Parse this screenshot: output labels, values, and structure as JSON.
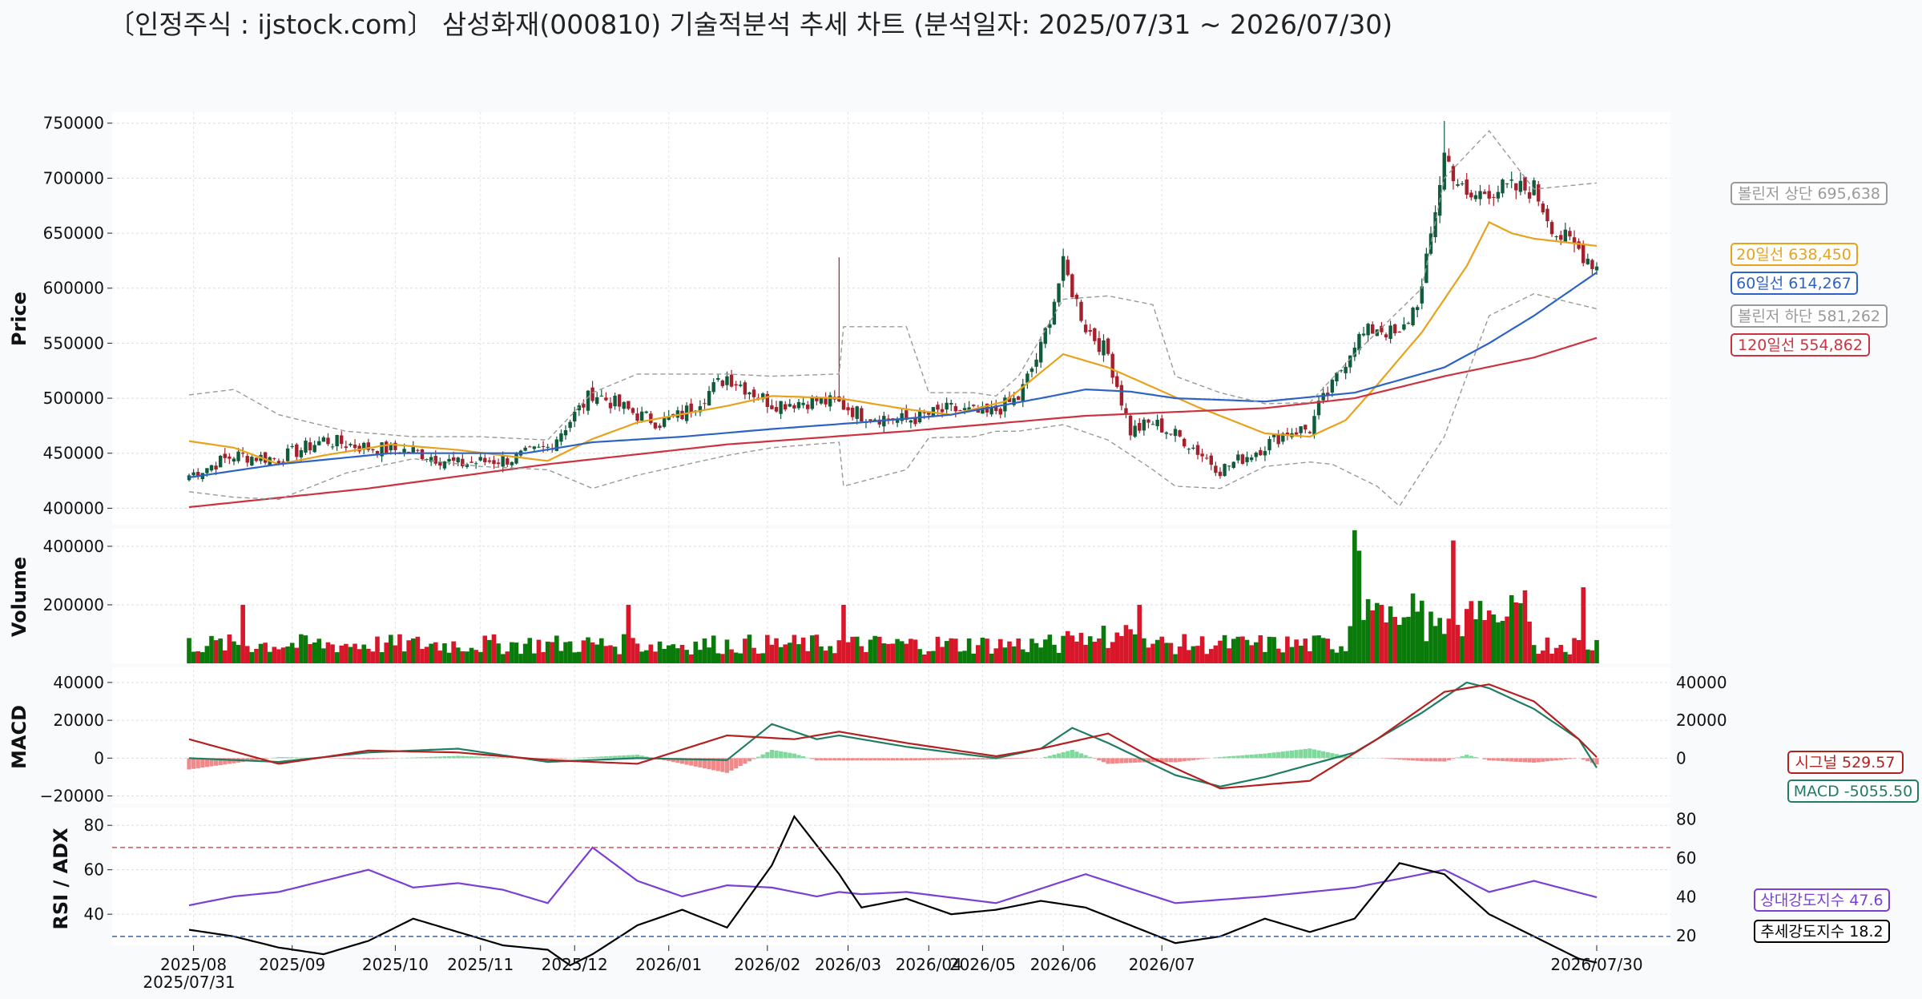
{
  "title": "〔인정주식 : ijstock.com〕 삼성화재(000810) 기술적분석 추세 차트 (분석일자: 2025/07/31 ~ 2026/07/30)",
  "chart_data": [
    {
      "type": "line",
      "panel": "price",
      "ylabel": "Price",
      "ylim": [
        385000,
        760000
      ],
      "yticks": [
        400000,
        450000,
        500000,
        550000,
        600000,
        650000,
        700000,
        750000
      ],
      "grid": true,
      "candles_x_range": [
        "2025/07/31",
        "2026/07/30"
      ],
      "close_path": {
        "x": [
          0,
          10,
          20,
          30,
          40,
          50,
          60,
          72,
          80,
          90,
          100,
          105,
          110,
          120,
          130,
          140,
          145,
          150,
          160,
          170,
          178,
          185,
          190,
          195,
          200,
          205,
          210,
          215,
          222,
          230,
          238,
          245,
          250,
          252,
          255,
          260,
          265,
          270,
          275,
          280,
          285,
          290,
          300,
          305,
          310,
          314
        ],
        "values": [
          430000,
          448000,
          445000,
          462000,
          455000,
          452000,
          440000,
          445000,
          455000,
          505000,
          485000,
          478000,
          485000,
          520000,
          495000,
          498000,
          495000,
          485000,
          480000,
          490000,
          485000,
          500000,
          545000,
          620000,
          565000,
          540000,
          470000,
          478000,
          462000,
          435000,
          452000,
          470000,
          472000,
          492000,
          510000,
          552000,
          565000,
          555000,
          598000,
          722000,
          680000,
          690000,
          690000,
          650000,
          635000,
          620000
        ]
      },
      "series": [
        {
          "name": "20일선",
          "color": "#e8a21b",
          "last": "638,450",
          "x": [
            0,
            10,
            20,
            30,
            45,
            60,
            80,
            90,
            100,
            120,
            130,
            145,
            160,
            170,
            182,
            195,
            205,
            215,
            225,
            240,
            250,
            258,
            265,
            275,
            285,
            290,
            295,
            300,
            314
          ],
          "values": [
            461000,
            455000,
            440000,
            448000,
            458000,
            453000,
            443000,
            463000,
            478000,
            493000,
            502000,
            500000,
            490000,
            485000,
            497000,
            540000,
            528000,
            510000,
            492000,
            468000,
            465000,
            480000,
            512000,
            560000,
            620000,
            660000,
            650000,
            645000,
            638450
          ]
        },
        {
          "name": "60일선",
          "color": "#2e63c6",
          "last": "614,267",
          "x": [
            0,
            20,
            45,
            75,
            90,
            110,
            130,
            150,
            170,
            190,
            200,
            210,
            220,
            240,
            260,
            280,
            290,
            300,
            314
          ],
          "values": [
            428000,
            440000,
            450000,
            450000,
            460000,
            465000,
            472000,
            478000,
            485000,
            500000,
            508000,
            506000,
            500000,
            497000,
            505000,
            528000,
            550000,
            575000,
            614267
          ]
        },
        {
          "name": "120일선",
          "color": "#cc3340",
          "last": "554,862",
          "x": [
            0,
            40,
            80,
            120,
            160,
            200,
            240,
            260,
            280,
            300,
            314
          ],
          "values": [
            401000,
            418000,
            440000,
            458000,
            470000,
            484000,
            491000,
            500000,
            520000,
            537000,
            554862
          ]
        },
        {
          "name": "볼린저 상단",
          "color": "#999999",
          "last": "695,638",
          "x": [
            0,
            10,
            20,
            35,
            50,
            65,
            80,
            90,
            100,
            120,
            130,
            145,
            146,
            160,
            165,
            175,
            180,
            185,
            195,
            205,
            215,
            220,
            230,
            240,
            250,
            260,
            275,
            280,
            290,
            300,
            314
          ],
          "values": [
            503000,
            508000,
            485000,
            470000,
            465000,
            465000,
            462000,
            505000,
            522000,
            522000,
            520000,
            522000,
            565000,
            565000,
            505000,
            505000,
            502000,
            520000,
            590000,
            593000,
            585000,
            520000,
            505000,
            495000,
            496000,
            540000,
            600000,
            700000,
            743000,
            690000,
            695638
          ]
        },
        {
          "name": "볼린저 하단",
          "color": "#999999",
          "last": "581,262",
          "x": [
            0,
            10,
            20,
            35,
            50,
            65,
            80,
            90,
            100,
            120,
            130,
            145,
            146,
            160,
            165,
            175,
            180,
            185,
            195,
            205,
            215,
            220,
            230,
            240,
            250,
            255,
            265,
            270,
            280,
            290,
            300,
            314
          ],
          "values": [
            415000,
            410000,
            408000,
            432000,
            445000,
            438000,
            435000,
            418000,
            430000,
            448000,
            455000,
            460000,
            420000,
            435000,
            464000,
            465000,
            470000,
            470000,
            476000,
            462000,
            435000,
            420000,
            418000,
            438000,
            442000,
            440000,
            420000,
            402000,
            465000,
            575000,
            595000,
            581262
          ]
        }
      ]
    },
    {
      "type": "bar",
      "panel": "volume",
      "ylabel": "Volume",
      "ylim": [
        0,
        460000
      ],
      "yticks": [
        200000,
        400000
      ],
      "colors": {
        "up": "#0a7a0a",
        "down": "#d8182a"
      }
    },
    {
      "type": "line",
      "panel": "macd",
      "ylabel": "MACD",
      "ylim": [
        -24000,
        48000
      ],
      "yticks_left": [
        -20000,
        0,
        20000,
        40000
      ],
      "yticks_right": [
        0,
        20000,
        40000
      ],
      "series": [
        {
          "name": "MACD",
          "color": "#1f7d62",
          "last": "-5055.50",
          "x": [
            0,
            20,
            40,
            60,
            80,
            100,
            120,
            130,
            140,
            145,
            160,
            180,
            190,
            197,
            205,
            220,
            230,
            240,
            260,
            275,
            285,
            290,
            300,
            310,
            314
          ],
          "values": [
            0,
            -2000,
            3000,
            5000,
            -2000,
            0,
            -1000,
            18000,
            10000,
            12000,
            6000,
            0,
            5000,
            16000,
            8000,
            -9000,
            -15000,
            -10000,
            3000,
            24000,
            40000,
            37000,
            26000,
            10000,
            -5055.5
          ]
        },
        {
          "name": "시그널",
          "color": "#b32020",
          "last": "529.57",
          "x": [
            0,
            20,
            40,
            60,
            80,
            100,
            120,
            135,
            145,
            160,
            180,
            190,
            205,
            215,
            230,
            250,
            265,
            280,
            290,
            300,
            310,
            314
          ],
          "values": [
            10000,
            -3000,
            4000,
            3000,
            -1000,
            -3000,
            12000,
            10000,
            14000,
            8000,
            1000,
            5000,
            13000,
            0,
            -16000,
            -12000,
            10000,
            35000,
            39000,
            30000,
            10000,
            529.57
          ]
        }
      ],
      "histogram": "MACD - 시그널"
    },
    {
      "type": "line",
      "panel": "rsi_adx",
      "ylabel": "RSI / ADX",
      "ylim_left": [
        26,
        88
      ],
      "yticks_left": [
        40,
        60,
        80
      ],
      "yticks_right": [
        20,
        40,
        60,
        80
      ],
      "reference_lines": [
        70,
        30
      ],
      "series": [
        {
          "name": "상대강도지수",
          "color": "#7a3fd4",
          "last": "47.6",
          "x": [
            0,
            10,
            20,
            30,
            40,
            50,
            60,
            70,
            80,
            90,
            100,
            110,
            120,
            130,
            140,
            145,
            150,
            160,
            180,
            200,
            220,
            240,
            260,
            280,
            290,
            300,
            314
          ],
          "values": [
            44,
            48,
            50,
            55,
            60,
            52,
            54,
            51,
            45,
            70,
            55,
            48,
            53,
            52,
            48,
            50,
            49,
            50,
            45,
            58,
            45,
            48,
            52,
            60,
            50,
            55,
            47.6
          ]
        },
        {
          "name": "추세강도지수",
          "color": "#000000",
          "last": "18.2",
          "x": [
            0,
            10,
            20,
            30,
            40,
            50,
            60,
            70,
            80,
            85,
            90,
            100,
            110,
            120,
            130,
            135,
            145,
            150,
            160,
            170,
            180,
            190,
            200,
            210,
            220,
            230,
            240,
            250,
            260,
            270,
            280,
            290,
            300,
            310,
            314
          ],
          "values": [
            33,
            30,
            25,
            22,
            28,
            38,
            32,
            26,
            24,
            17,
            22,
            35,
            42,
            34,
            62,
            84,
            58,
            43,
            47,
            40,
            42,
            46,
            43,
            35,
            27,
            30,
            38,
            32,
            38,
            63,
            58,
            40,
            30,
            20,
            18.2
          ]
        }
      ]
    }
  ],
  "x_ticks": [
    "2025/08",
    "2025/09",
    "2025/10",
    "2025/11",
    "2025/12",
    "2026/01",
    "2026/02",
    "2026/03",
    "2026/04",
    "2026/05",
    "2026/06",
    "2026/07",
    "2026/07/30"
  ],
  "x_tick_positions": [
    1,
    23,
    46,
    65,
    86,
    107,
    129,
    147,
    165,
    177,
    195,
    217,
    314
  ],
  "x_start_label": "2025/07/31",
  "tags": {
    "bb_upper": "볼린저 상단 695,638",
    "ma20": "20일선 638,450",
    "ma60": "60일선 614,267",
    "bb_lower": "볼린저 하단 581,262",
    "ma120": "120일선 554,862",
    "signal": "시그널 529.57",
    "macd": "MACD -5055.50",
    "rsi": "상대강도지수 47.6",
    "adx": "추세강도지수 18.2"
  }
}
